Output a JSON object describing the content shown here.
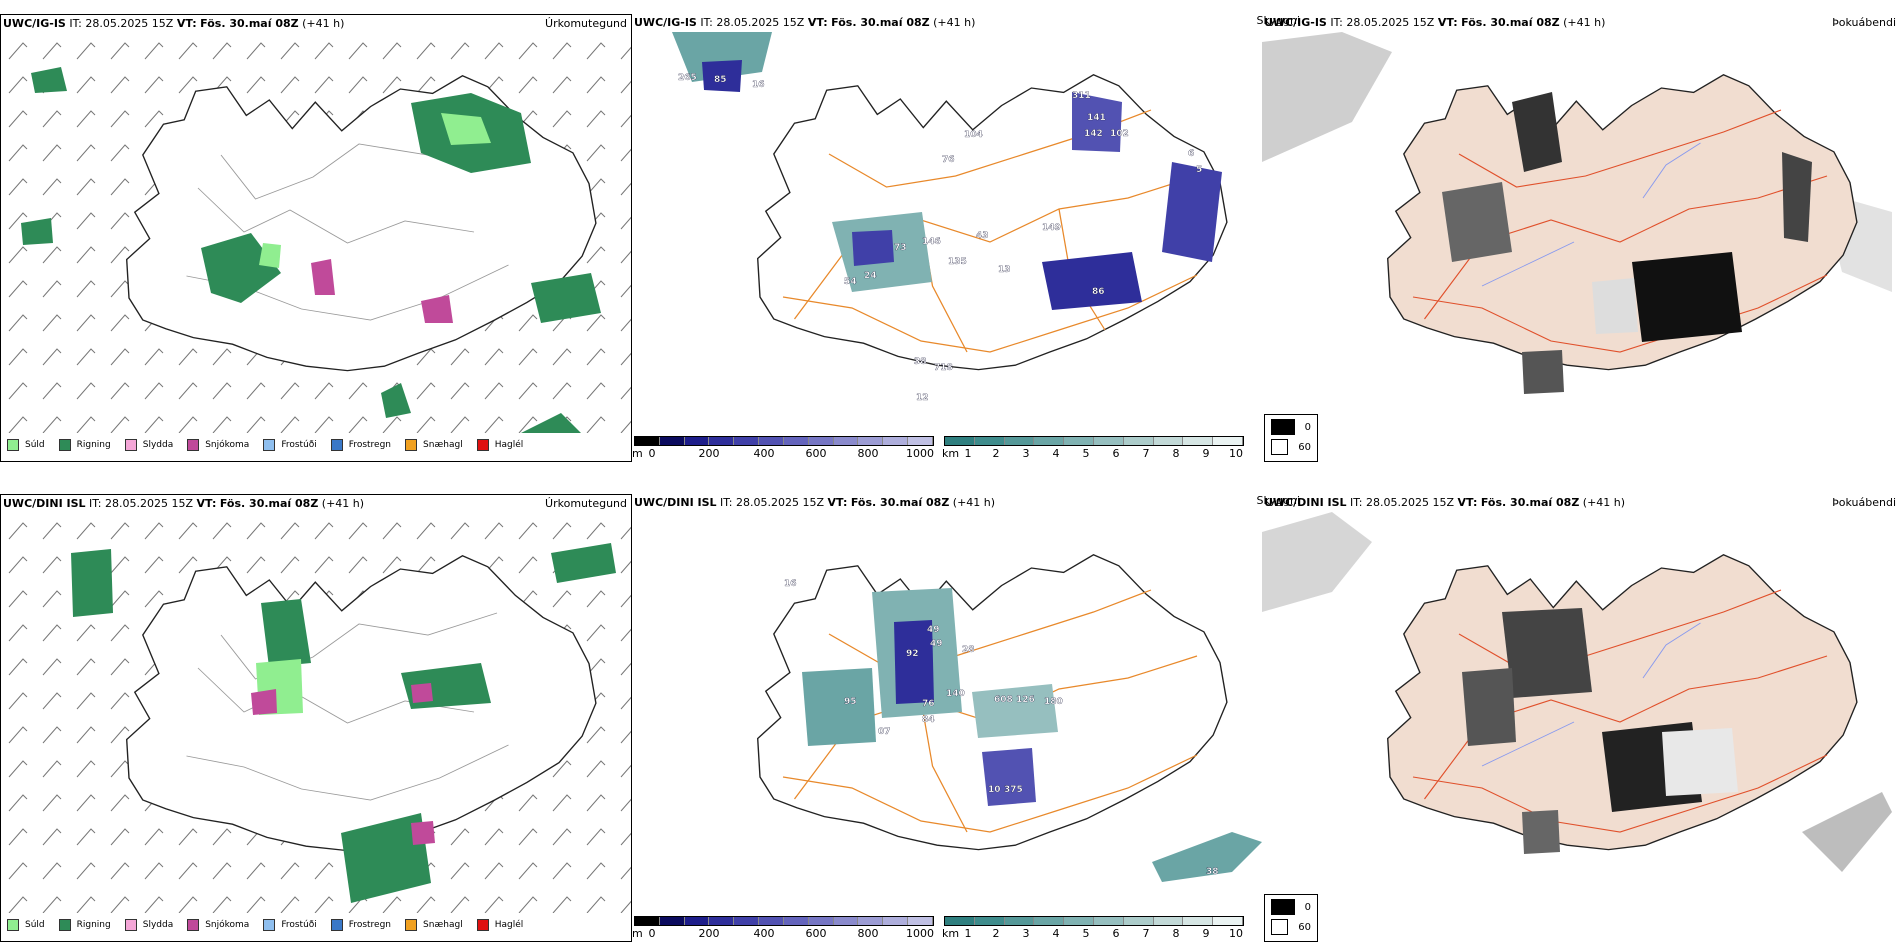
{
  "rows": [
    {
      "model": "UWC/IG-IS",
      "it_label": "IT:",
      "it_value": "28.05.2025 15Z",
      "vt_label": "VT:",
      "vt_value": "Fös. 30.maí 08Z",
      "lead": "(+41 h)",
      "panel_types": [
        "Úrkomutegund",
        "Skyggni",
        "Þokuábendi"
      ]
    },
    {
      "model": "UWC/DINI ISL",
      "it_label": "IT:",
      "it_value": "28.05.2025 15Z",
      "vt_label": "VT:",
      "vt_value": "Fös. 30.maí 08Z",
      "lead": "(+41 h)",
      "panel_types": [
        "Úrkomutegund",
        "Skyggni",
        "Þokuábendi"
      ]
    }
  ],
  "precip_legend": [
    {
      "label": "Súld",
      "color": "#90ee90"
    },
    {
      "label": "Rigning",
      "color": "#2e8b57"
    },
    {
      "label": "Slydda",
      "color": "#f4a6d7"
    },
    {
      "label": "Snjókoma",
      "color": "#c04a9a"
    },
    {
      "label": "Frostúði",
      "color": "#8fbfef"
    },
    {
      "label": "Frostregn",
      "color": "#3a78c8"
    },
    {
      "label": "Snæhagl",
      "color": "#f0a020"
    },
    {
      "label": "Haglél",
      "color": "#e01010"
    }
  ],
  "visibility_m_scale": {
    "unit": "m",
    "ticks": [
      "0",
      "200",
      "400",
      "600",
      "800",
      "1000"
    ],
    "colors": [
      "#000000",
      "#0b0b5e",
      "#1d1d8a",
      "#2e2e9a",
      "#4040a8",
      "#5252b2",
      "#6464bc",
      "#7676c4",
      "#8a8acc",
      "#9c9cd4",
      "#aeaedc",
      "#c0c0e4"
    ]
  },
  "visibility_km_scale": {
    "unit": "km",
    "ticks": [
      "1",
      "2",
      "3",
      "4",
      "5",
      "6",
      "7",
      "8",
      "9",
      "10"
    ],
    "colors": [
      "#2f7f7f",
      "#3f8c8c",
      "#559898",
      "#6aa5a5",
      "#80b2b2",
      "#96bfbf",
      "#acccca",
      "#c2d9d7",
      "#d6e6e4",
      "#eaf3f2"
    ]
  },
  "fog_legend": [
    {
      "label": "0",
      "color": "#000000"
    },
    {
      "label": "60",
      "color": "#ffffff"
    }
  ],
  "vis_labels_top": [
    "265",
    "85",
    "16",
    "311",
    "141",
    "142",
    "102",
    "6",
    "5",
    "104",
    "76",
    "73",
    "146",
    "43",
    "135",
    "149",
    "54",
    "24",
    "13",
    "86",
    "38",
    "718",
    "12"
  ],
  "vis_labels_bottom": [
    "16",
    "49",
    "49",
    "92",
    "28",
    "140",
    "608",
    "126",
    "180",
    "95",
    "76",
    "84",
    "07",
    "10",
    "375",
    "38"
  ]
}
